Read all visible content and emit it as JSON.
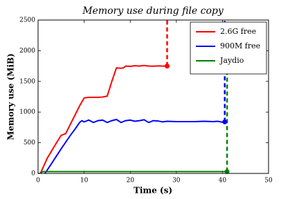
{
  "chart_data": {
    "type": "line",
    "title": "Memory use during file copy",
    "x_label": "Time (s)",
    "y_label": "Memory use (MiB)",
    "xlim": [
      0,
      50
    ],
    "xticks": [
      0,
      10,
      20,
      30,
      40,
      50
    ],
    "ylim": [
      0,
      2500
    ],
    "yticks": [
      0,
      500,
      1000,
      1500,
      2000,
      2500
    ],
    "legend": "upper right",
    "series": [
      {
        "name": "2.6G free",
        "color": "#ff0000",
        "x": [
          0.5,
          2,
          4,
          5,
          6,
          7,
          8,
          9,
          10,
          11,
          12,
          13,
          14,
          15,
          16,
          17,
          18,
          18.5,
          19,
          20,
          21,
          22,
          23,
          24,
          25,
          26,
          27,
          28
        ],
        "values": [
          0,
          250,
          500,
          620,
          650,
          800,
          950,
          1100,
          1230,
          1240,
          1240,
          1240,
          1245,
          1260,
          1500,
          1720,
          1715,
          1720,
          1750,
          1745,
          1755,
          1750,
          1760,
          1750,
          1748,
          1752,
          1750,
          1750
        ],
        "dash": {
          "x": [
            28,
            28
          ],
          "values": [
            1750,
            2500
          ]
        }
      },
      {
        "name": "900M free",
        "color": "#0000ff",
        "x": [
          1.5,
          3,
          5,
          7,
          8,
          9,
          9.5,
          10,
          11,
          12,
          13,
          14,
          15,
          16,
          17,
          18,
          19,
          20,
          21,
          22,
          23,
          24,
          25,
          26,
          27,
          28,
          30,
          32,
          34,
          36,
          38,
          39,
          40,
          40.5
        ],
        "values": [
          0,
          170,
          400,
          620,
          720,
          830,
          860,
          840,
          870,
          830,
          860,
          870,
          830,
          860,
          880,
          830,
          860,
          870,
          850,
          860,
          875,
          830,
          860,
          855,
          840,
          850,
          845,
          845,
          845,
          850,
          845,
          850,
          835,
          840
        ],
        "dash": {
          "x": [
            40.5,
            40.5
          ],
          "values": [
            840,
            2500
          ]
        }
      },
      {
        "name": "Jaydio",
        "color": "#008000",
        "x": [
          0,
          0.5,
          1,
          41
        ],
        "values": [
          0,
          0,
          30,
          30
        ],
        "dash": {
          "x": [
            41,
            41
          ],
          "values": [
            30,
            2500
          ]
        }
      }
    ]
  }
}
